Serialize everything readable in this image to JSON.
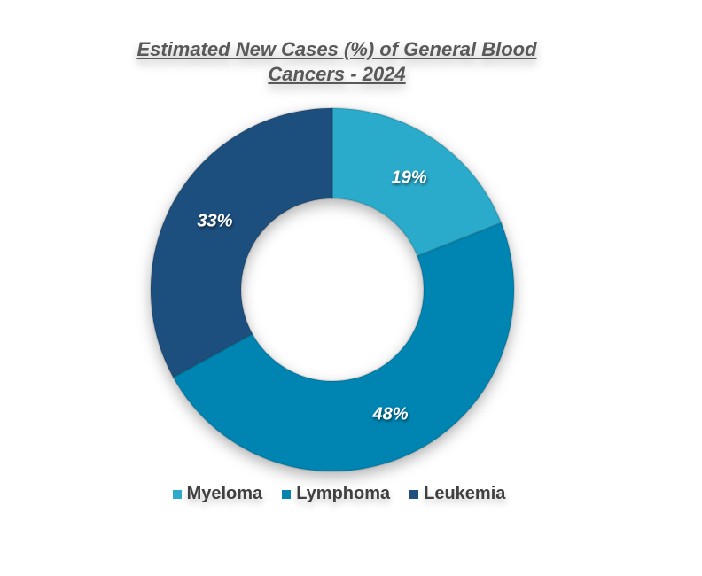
{
  "chart_data": {
    "type": "pie",
    "variant": "donut",
    "title": "Estimated New Cases (%) of General Blood Cancers - 2024",
    "categories": [
      "Myeloma",
      "Lymphoma",
      "Leukemia"
    ],
    "values": [
      19,
      48,
      33
    ],
    "value_labels": [
      "19%",
      "48%",
      "33%"
    ],
    "colors": [
      "#2CABCB",
      "#0584B2",
      "#1F507E"
    ],
    "legend_position": "bottom"
  }
}
